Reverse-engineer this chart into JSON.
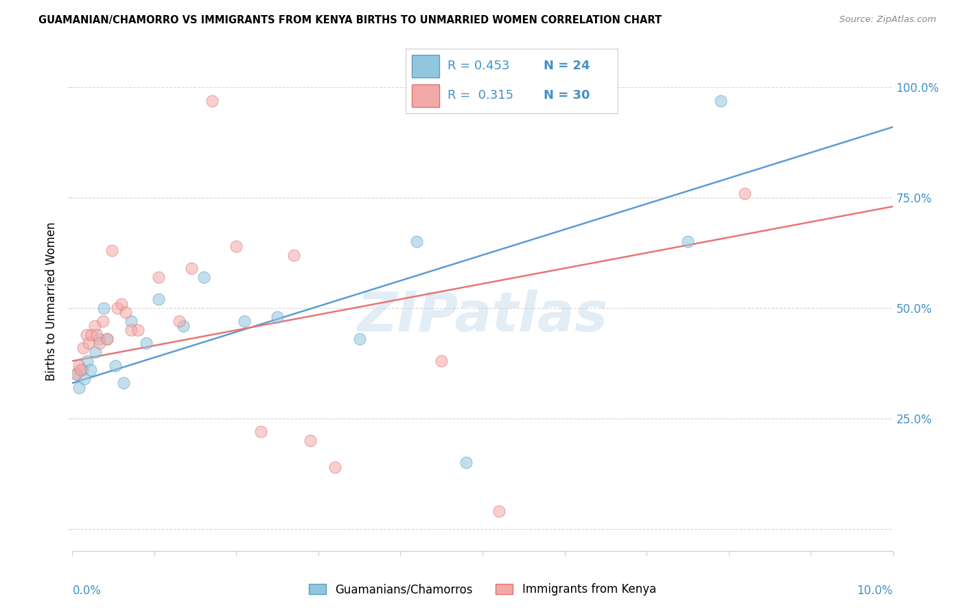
{
  "title": "GUAMANIAN/CHAMORRO VS IMMIGRANTS FROM KENYA BIRTHS TO UNMARRIED WOMEN CORRELATION CHART",
  "source": "Source: ZipAtlas.com",
  "ylabel": "Births to Unmarried Women",
  "r_blue": 0.453,
  "n_blue": 24,
  "r_pink": 0.315,
  "n_pink": 30,
  "blue_color": "#92c5de",
  "pink_color": "#f4a9a9",
  "blue_edge_color": "#5a9fc8",
  "pink_edge_color": "#e07070",
  "blue_line_color": "#5b9bd5",
  "pink_line_color": "#e87575",
  "legend_label_blue": "Guamanians/Chamorros",
  "legend_label_pink": "Immigrants from Kenya",
  "watermark": "ZIPatlas",
  "xlim": [
    0.0,
    10.0
  ],
  "ylim": [
    -5.0,
    108.0
  ],
  "yticks": [
    0,
    25,
    50,
    75,
    100
  ],
  "blue_points_x": [
    0.05,
    0.08,
    0.12,
    0.15,
    0.18,
    0.22,
    0.28,
    0.32,
    0.38,
    0.42,
    0.52,
    0.62,
    0.72,
    0.9,
    1.05,
    1.35,
    1.6,
    2.1,
    2.5,
    3.5,
    4.2,
    4.8,
    7.5,
    7.9
  ],
  "blue_points_y": [
    35,
    32,
    36,
    34,
    38,
    36,
    40,
    43,
    50,
    43,
    37,
    33,
    47,
    42,
    52,
    46,
    57,
    47,
    48,
    43,
    65,
    15,
    65,
    97
  ],
  "pink_points_x": [
    0.05,
    0.08,
    0.1,
    0.13,
    0.17,
    0.2,
    0.23,
    0.27,
    0.3,
    0.33,
    0.37,
    0.42,
    0.48,
    0.55,
    0.6,
    0.65,
    0.72,
    0.8,
    1.05,
    1.3,
    1.45,
    1.7,
    2.0,
    2.3,
    2.7,
    2.9,
    3.2,
    4.5,
    5.2,
    8.2
  ],
  "pink_points_y": [
    35,
    37,
    36,
    41,
    44,
    42,
    44,
    46,
    44,
    42,
    47,
    43,
    63,
    50,
    51,
    49,
    45,
    45,
    57,
    47,
    59,
    97,
    64,
    22,
    62,
    20,
    14,
    38,
    4,
    76
  ],
  "blue_trend_x": [
    0.0,
    10.0
  ],
  "blue_trend_y": [
    33.0,
    91.0
  ],
  "pink_trend_x": [
    0.0,
    10.0
  ],
  "pink_trend_y": [
    38.0,
    73.0
  ],
  "tick_color": "#4292c6",
  "grid_color": "#d8d8d8",
  "axis_label_color": "#4292c6"
}
